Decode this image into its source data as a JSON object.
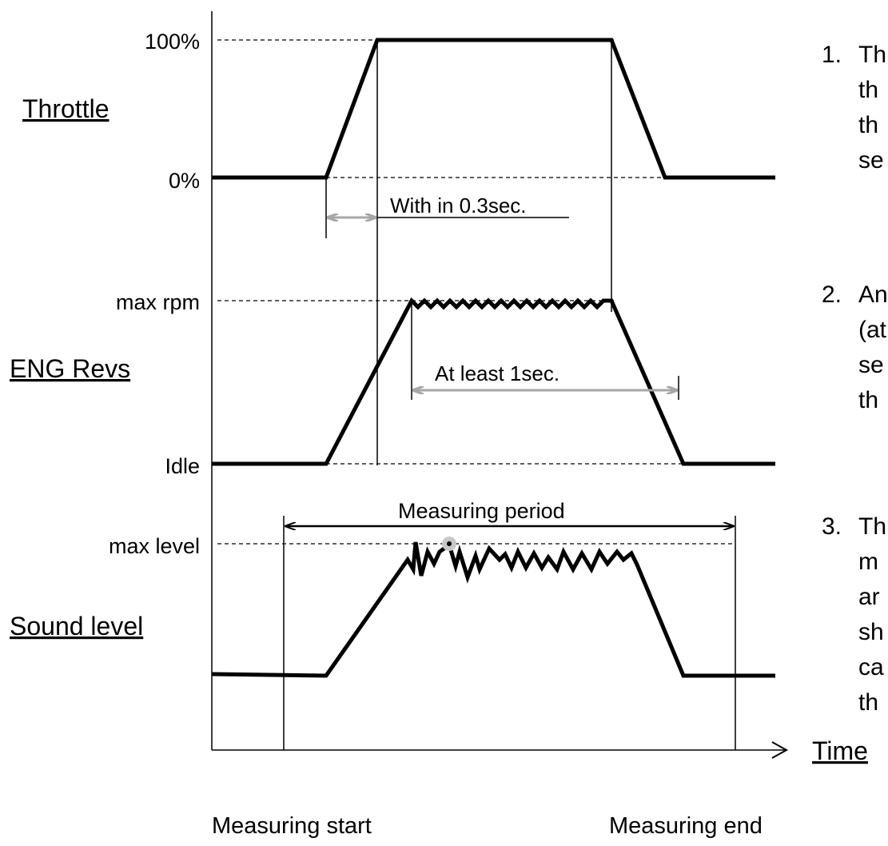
{
  "signals": {
    "throttle": {
      "name": "Throttle",
      "top_label": "100%",
      "bottom_label": "0%"
    },
    "eng_revs": {
      "name": "ENG Revs",
      "top_label": "max rpm",
      "bottom_label": "Idle"
    },
    "sound_level": {
      "name": "Sound level",
      "top_label": "max level"
    }
  },
  "annotations": {
    "throttle_rise": "With in 0.3sec.",
    "max_rpm_hold": "At least 1sec.",
    "measuring_period": "Measuring period"
  },
  "axis": {
    "time_label": "Time",
    "measuring_start": "Measuring start",
    "measuring_end": "Measuring end"
  },
  "steps": [
    {
      "number": "1.",
      "text_lines": [
        "Th",
        "th",
        "th",
        "se"
      ]
    },
    {
      "number": "2.",
      "text_lines": [
        "An",
        "(at",
        "se",
        "th"
      ]
    },
    {
      "number": "3.",
      "text_lines": [
        "Th",
        "m",
        "ar",
        "sh",
        "ca",
        "th"
      ]
    }
  ]
}
